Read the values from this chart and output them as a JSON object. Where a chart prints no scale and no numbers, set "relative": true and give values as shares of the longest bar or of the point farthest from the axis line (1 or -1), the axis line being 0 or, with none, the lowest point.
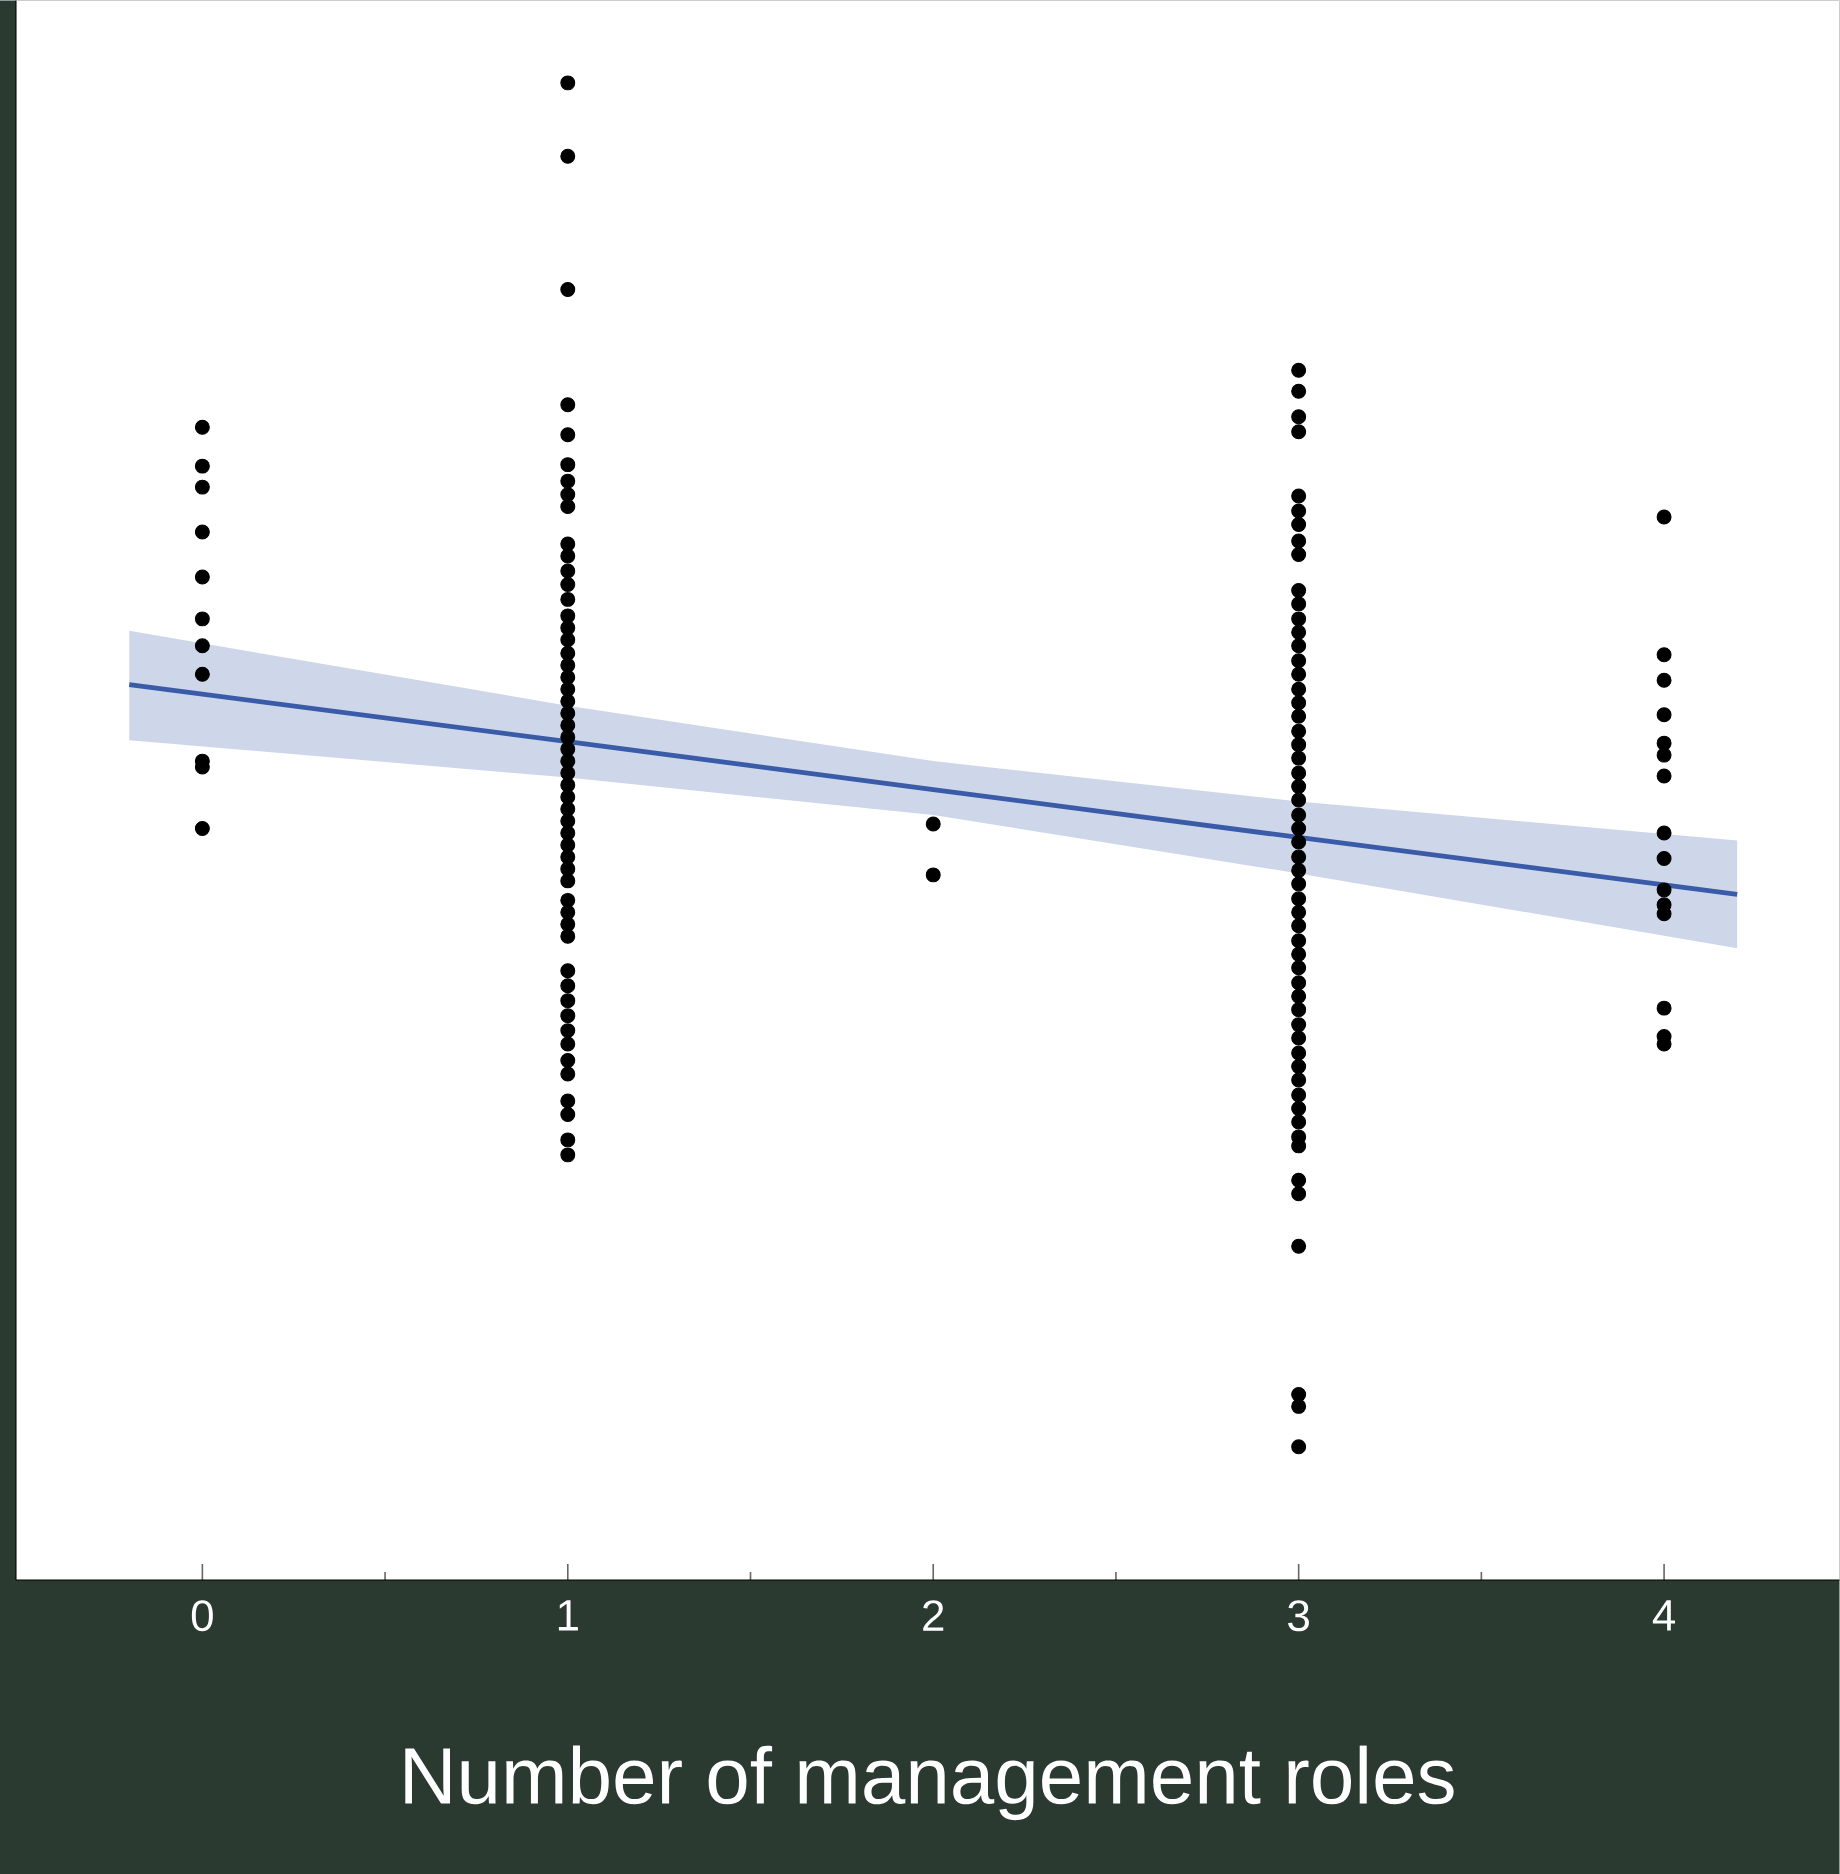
{
  "chart_data": {
    "type": "scatter",
    "xlabel": "Number of management roles",
    "relative": true,
    "tick_labels": "x",
    "marker": "circle",
    "xlim": [
      -0.51,
      4.48
    ],
    "xticks": [
      0,
      1,
      2,
      3,
      4
    ],
    "series": [
      {
        "color": "#000000",
        "x": [
          0,
          0,
          0,
          0,
          0,
          0,
          0,
          0,
          0,
          0,
          0,
          1,
          1,
          1,
          1,
          1,
          1,
          1,
          1,
          1,
          1,
          1,
          1,
          1,
          1,
          1,
          1,
          1,
          1,
          1,
          1,
          1,
          1,
          1,
          1,
          1,
          1,
          1,
          1,
          1,
          1,
          1,
          1,
          1,
          1,
          1,
          1,
          1,
          1,
          1,
          1,
          1,
          1,
          1,
          1,
          1,
          1,
          1,
          1,
          1,
          1,
          1,
          1,
          1,
          2,
          2,
          3,
          3,
          3,
          3,
          3,
          3,
          3,
          3,
          3,
          3,
          3,
          3,
          3,
          3,
          3,
          3,
          3,
          3,
          3,
          3,
          3,
          3,
          3,
          3,
          3,
          3,
          3,
          3,
          3,
          3,
          3,
          3,
          3,
          3,
          3,
          3,
          3,
          3,
          3,
          3,
          3,
          3,
          3,
          3,
          3,
          3,
          3,
          3,
          3,
          3,
          3,
          3,
          3,
          3,
          3,
          3,
          4,
          4,
          4,
          4,
          4,
          4,
          4,
          4,
          4,
          4,
          4,
          4,
          4,
          4,
          4
        ],
        "values": [
          0.77,
          0.744,
          0.73,
          0.7,
          0.67,
          0.642,
          0.624,
          0.605,
          0.547,
          0.543,
          0.502,
          1.0,
          0.951,
          0.862,
          0.785,
          0.765,
          0.745,
          0.734,
          0.725,
          0.717,
          0.692,
          0.684,
          0.674,
          0.665,
          0.655,
          0.644,
          0.636,
          0.628,
          0.619,
          0.611,
          0.603,
          0.595,
          0.587,
          0.579,
          0.571,
          0.563,
          0.555,
          0.547,
          0.539,
          0.531,
          0.523,
          0.515,
          0.507,
          0.499,
          0.491,
          0.483,
          0.475,
          0.467,
          0.454,
          0.446,
          0.438,
          0.43,
          0.407,
          0.397,
          0.387,
          0.377,
          0.367,
          0.358,
          0.347,
          0.338,
          0.32,
          0.311,
          0.294,
          0.284,
          0.505,
          0.471,
          0.808,
          0.794,
          0.777,
          0.767,
          0.724,
          0.714,
          0.705,
          0.694,
          0.685,
          0.661,
          0.652,
          0.642,
          0.633,
          0.624,
          0.614,
          0.605,
          0.595,
          0.586,
          0.577,
          0.567,
          0.558,
          0.549,
          0.539,
          0.53,
          0.521,
          0.511,
          0.502,
          0.493,
          0.483,
          0.474,
          0.465,
          0.455,
          0.446,
          0.437,
          0.427,
          0.418,
          0.409,
          0.399,
          0.39,
          0.381,
          0.371,
          0.362,
          0.352,
          0.343,
          0.334,
          0.324,
          0.315,
          0.306,
          0.296,
          0.29,
          0.267,
          0.258,
          0.223,
          0.124,
          0.116,
          0.089,
          0.71,
          0.618,
          0.601,
          0.578,
          0.559,
          0.551,
          0.537,
          0.499,
          0.482,
          0.461,
          0.451,
          0.445,
          0.382,
          0.363,
          0.358
        ]
      },
      {
        "type": "line",
        "color": "#3a5ba8",
        "line_style": "solid",
        "marker": "none",
        "x": [
          -0.2,
          1,
          2,
          3,
          4.2
        ],
        "values": [
          0.598,
          0.56,
          0.528,
          0.496,
          0.458
        ],
        "lower": [
          0.561,
          0.536,
          0.511,
          0.472,
          0.422
        ],
        "upper": [
          0.634,
          0.584,
          0.547,
          0.52,
          0.494
        ]
      }
    ]
  }
}
